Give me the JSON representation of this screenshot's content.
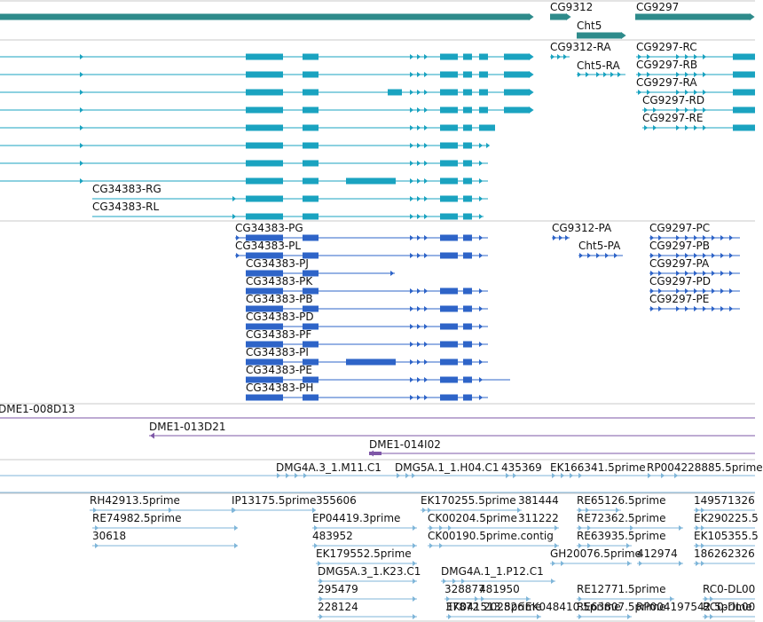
{
  "colors": {
    "gene": "#2e8b8b",
    "transcript": "#1aa3c0",
    "protein": "#2e64c8",
    "clone": "#7e57a7",
    "est": "#7fb6d9",
    "divider": "#c8c8c8"
  },
  "icons": {
    "strand_arrow": "arrow-icon"
  },
  "gene_track": {
    "labels": [
      "CG9312",
      "Cht5",
      "CG9297"
    ]
  },
  "transcript_track": {
    "labels": [
      "CG9312-RA",
      "Cht5-RA",
      "CG9297-RC",
      "CG9297-RB",
      "CG9297-RA",
      "CG9297-RD",
      "CG9297-RE",
      "CG34383-RG",
      "CG34383-RL"
    ]
  },
  "protein_track": {
    "labels": [
      "CG34383-PG",
      "CG34383-PL",
      "CG34383-PJ",
      "CG34383-PK",
      "CG34383-PB",
      "CG34383-PD",
      "CG34383-PF",
      "CG34383-PI",
      "CG34383-PE",
      "CG34383-PH",
      "CG9312-PA",
      "Cht5-PA",
      "CG9297-PC",
      "CG9297-PB",
      "CG9297-PA",
      "CG9297-PD",
      "CG9297-PE"
    ]
  },
  "clone_track": {
    "labels": [
      "DME1-008D13",
      "DME1-013D21",
      "DME1-014I02"
    ]
  },
  "est_track": {
    "labels": [
      "DMG4A.3_1.M11.C1",
      "DMG5A.1_1.H04.C1",
      "435369",
      "EK166341.5prime",
      "RP004228885.5prime",
      "RH42913.5prime",
      "IP13175.5prime",
      "355606",
      "EK170255.5prime",
      "381444",
      "RE65126.5prime",
      "149571326",
      "RE74982.5prime",
      "EP04419.3prime",
      "CK00204.5prime",
      "311222",
      "RE72362.5prime",
      "EK290225.5",
      "30618",
      "483952",
      "CK00190.5prime.contig",
      "RE63935.5prime",
      "EK105355.5",
      "EK179552.5prime",
      "GH20076.5prime",
      "412974",
      "186262326",
      "DMG5A.3_1.K23.C1",
      "DMG4A.1_1.P12.C1",
      "328877",
      "481950",
      "RE12771.5prime",
      "RC0-DL00",
      "295479",
      "EK041513.5prime",
      "RE63807.5prime",
      "RC0-DL00",
      "228124",
      "37872",
      "202826",
      "EK048410.5prime",
      "RP004197542.5prime"
    ]
  }
}
